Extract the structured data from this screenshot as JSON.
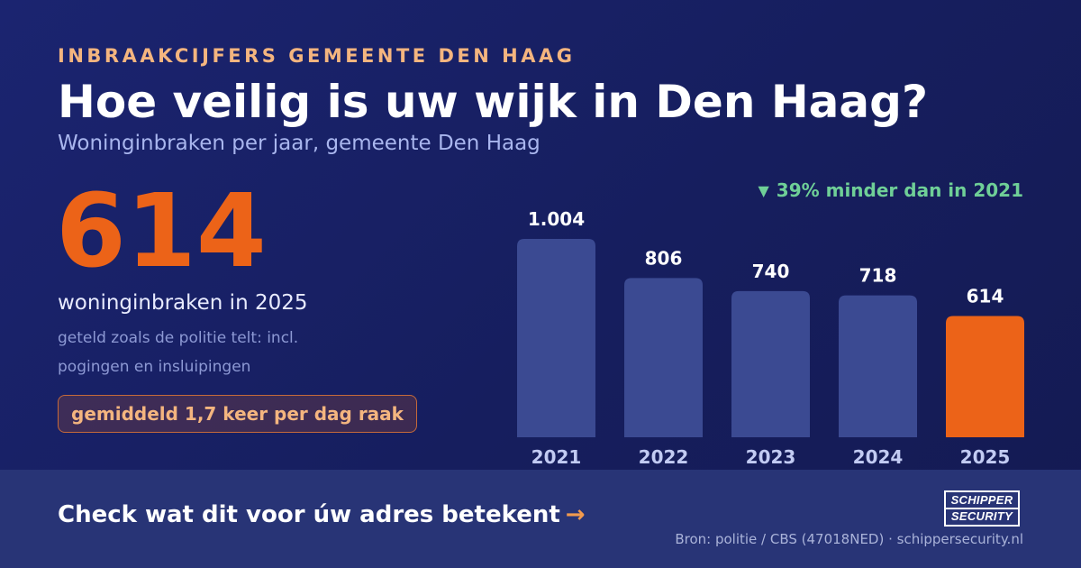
{
  "header": {
    "eyebrow": "INBRAAKCIJFERS GEMEENTE DEN HAAG",
    "title": "Hoe veilig is uw wijk in Den Haag?",
    "subtitle": "Woninginbraken per jaar, gemeente Den Haag"
  },
  "highlight": {
    "number": "614",
    "caption": "woninginbraken in 2025",
    "note_line1": "geteld zoals de politie telt: incl.",
    "note_line2": "pogingen en insluipingen",
    "pill": "gemiddeld 1,7 keer per dag raak"
  },
  "change": {
    "icon": "triangle-down-icon",
    "symbol": "▼",
    "text": "39% minder dan in 2021"
  },
  "colors": {
    "bar": "#3b4a92",
    "bar_highlight": "#ec6318",
    "accent": "#ec6318",
    "positive": "#6fcf97"
  },
  "chart_data": {
    "type": "bar",
    "categories": [
      "2021",
      "2022",
      "2023",
      "2024",
      "2025"
    ],
    "values": [
      1004,
      806,
      740,
      718,
      614
    ],
    "value_labels": [
      "1.004",
      "806",
      "740",
      "718",
      "614"
    ],
    "highlight_index": 4,
    "ylim": [
      0,
      1004
    ],
    "grid": false,
    "legend": "none"
  },
  "footer": {
    "cta": "Check wat dit voor úw adres betekent",
    "cta_arrow": "→",
    "logo_line1": "SCHIPPER",
    "logo_line2": "SECURITY",
    "source": "Bron: politie / CBS (47018NED) · schippersecurity.nl"
  }
}
